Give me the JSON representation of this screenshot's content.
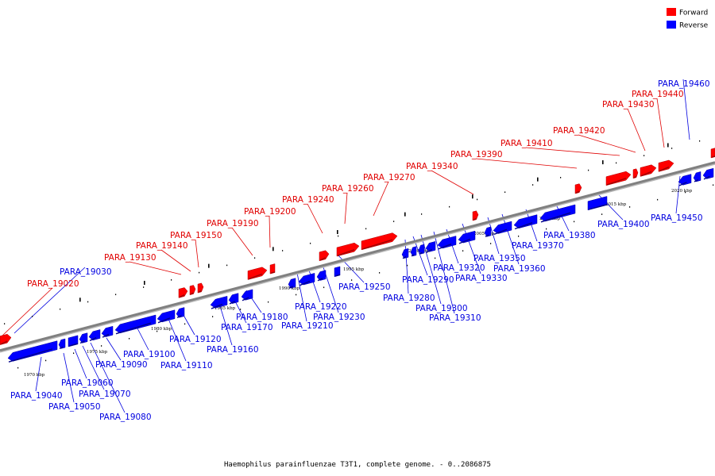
{
  "legend": [
    {
      "label": "Forward",
      "color": "#ff0000"
    },
    {
      "label": "Reverse",
      "color": "#0000ff"
    }
  ],
  "caption": "Haemophilus parainfluenzae T3T1, complete genome. - 0..2086875",
  "axis": {
    "color": "#808080",
    "tick_labels": [
      "1970 kbp",
      "1975 kbp",
      "1980 kbp",
      "1985 kbp",
      "1990 kbp",
      "1995 kbp",
      "2000 kbp",
      "2005 kbp",
      "2010 kbp",
      "2015 kbp",
      "2020 kbp"
    ]
  },
  "genes": {
    "forward": [
      "PARA_19020",
      "PARA_19130",
      "PARA_19140",
      "PARA_19150",
      "PARA_19190",
      "PARA_19200",
      "PARA_19240",
      "PARA_19260",
      "PARA_19270",
      "PARA_19340",
      "PARA_19390",
      "PARA_19410",
      "PARA_19420",
      "PARA_19430",
      "PARA_19440"
    ],
    "reverse": [
      "PARA_19030",
      "PARA_19040",
      "PARA_19050",
      "PARA_19060",
      "PARA_19070",
      "PARA_19080",
      "PARA_19090",
      "PARA_19100",
      "PARA_19110",
      "PARA_19120",
      "PARA_19160",
      "PARA_19170",
      "PARA_19180",
      "PARA_19210",
      "PARA_19220",
      "PARA_19230",
      "PARA_19250",
      "PARA_19280",
      "PARA_19290",
      "PARA_19300",
      "PARA_19310",
      "PARA_19320",
      "PARA_19330",
      "PARA_19350",
      "PARA_19360",
      "PARA_19370",
      "PARA_19380",
      "PARA_19400",
      "PARA_19450",
      "PARA_19460"
    ]
  }
}
